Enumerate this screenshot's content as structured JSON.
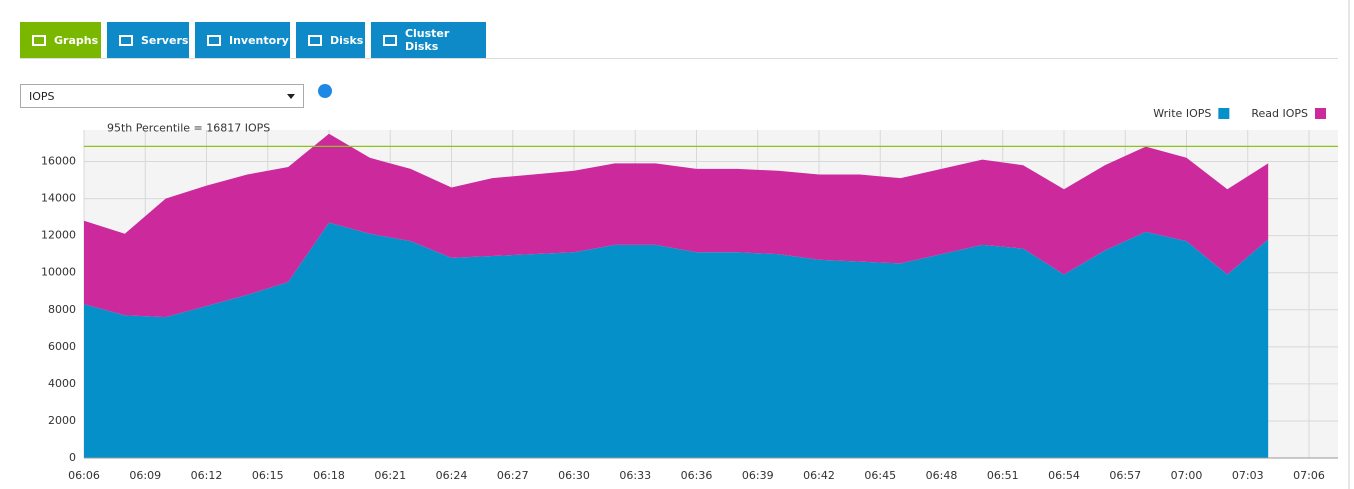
{
  "tabs": [
    "Graphs",
    "Servers",
    "Inventory",
    "Disks",
    "Cluster Disks"
  ],
  "dropdown": "IOPS",
  "chart_data": {
    "type": "area",
    "stacked": true,
    "x": [
      "06:06",
      "06:08",
      "06:10",
      "06:12",
      "06:14",
      "06:16",
      "06:18",
      "06:20",
      "06:22",
      "06:24",
      "06:26",
      "06:28",
      "06:30",
      "06:32",
      "06:34",
      "06:36",
      "06:38",
      "06:40",
      "06:42",
      "06:44",
      "06:46",
      "06:48",
      "06:50",
      "06:52",
      "06:54",
      "06:56",
      "06:58",
      "07:00",
      "07:02",
      "07:04"
    ],
    "series": [
      {
        "name": "Write IOPS",
        "color": "#0590c9",
        "values": [
          8300,
          7700,
          7600,
          8200,
          8800,
          9500,
          12700,
          12100,
          11700,
          10800,
          10900,
          11000,
          11100,
          11500,
          11500,
          11100,
          11100,
          11000,
          10700,
          10600,
          10500,
          11000,
          11500,
          11300,
          9900,
          11200,
          12200,
          11700,
          9900,
          11800
        ]
      },
      {
        "name": "Read IOPS",
        "color": "#cc2a9c",
        "values": [
          4500,
          4400,
          6400,
          6500,
          6500,
          6200,
          4800,
          4100,
          3900,
          3800,
          4200,
          4300,
          4400,
          4400,
          4400,
          4500,
          4500,
          4500,
          4600,
          4700,
          4600,
          4600,
          4600,
          4500,
          4600,
          4600,
          4600,
          4500,
          4600,
          4100
        ]
      }
    ],
    "xlim": [
      "06:06",
      "07:06"
    ],
    "xticks": [
      "06:06",
      "06:09",
      "06:12",
      "06:15",
      "06:18",
      "06:21",
      "06:24",
      "06:27",
      "06:30",
      "06:33",
      "06:36",
      "06:39",
      "06:42",
      "06:45",
      "06:48",
      "06:51",
      "06:54",
      "06:57",
      "07:00",
      "07:03",
      "07:06"
    ],
    "ylim": [
      0,
      17700
    ],
    "yticks": [
      0,
      2000,
      4000,
      6000,
      8000,
      10000,
      12000,
      14000,
      16000
    ],
    "grid": true,
    "legend": "top-right",
    "percentile": {
      "label": "95th Percentile = 16817 IOPS",
      "value": 16817,
      "color": "#8dc21f"
    }
  }
}
